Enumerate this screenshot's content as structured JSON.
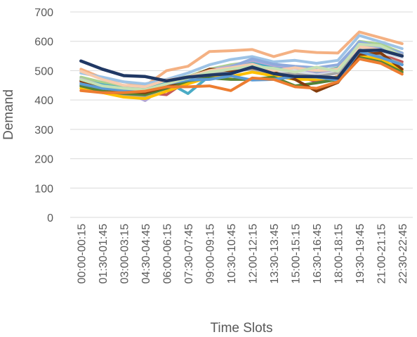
{
  "chart_data": {
    "type": "line",
    "xlabel": "Time Slots",
    "ylabel": "Demand",
    "ylim": [
      0,
      700
    ],
    "yticks": [
      0,
      100,
      200,
      300,
      400,
      500,
      600,
      700
    ],
    "grid": true,
    "legend": "none",
    "categories": [
      "00:00-00:15",
      "01:30-01:45",
      "03:00-03:15",
      "04:30-04:45",
      "06:00-06:15",
      "07:30-07:45",
      "09:00-09:15",
      "10:30-10:45",
      "12:00-12:15",
      "13:30-13:45",
      "15:00-15:15",
      "16:30-16:45",
      "18:00-18:15",
      "19:30-19:45",
      "21:00-21:15",
      "22:30-22:45"
    ],
    "series": [
      {
        "color": "#f4b183",
        "values": [
          505,
          475,
          462,
          448,
          500,
          515,
          565,
          568,
          572,
          548,
          568,
          562,
          560,
          632,
          612,
          592
        ]
      },
      {
        "color": "#a9d18e",
        "values": [
          478,
          460,
          448,
          432,
          470,
          480,
          505,
          520,
          530,
          525,
          500,
          495,
          510,
          600,
          590,
          560
        ]
      },
      {
        "color": "#9dc3e6",
        "values": [
          492,
          478,
          462,
          455,
          470,
          492,
          520,
          538,
          548,
          530,
          535,
          525,
          535,
          620,
          598,
          575
        ]
      },
      {
        "color": "#4bacc6",
        "values": [
          468,
          452,
          440,
          440,
          462,
          422,
          482,
          505,
          525,
          510,
          505,
          498,
          508,
          590,
          582,
          555
        ]
      },
      {
        "color": "#c55a5a",
        "values": [
          462,
          435,
          425,
          425,
          418,
          468,
          492,
          498,
          512,
          500,
          485,
          462,
          480,
          565,
          555,
          530
        ]
      },
      {
        "color": "#b4a7d6",
        "values": [
          472,
          448,
          432,
          398,
          450,
          478,
          502,
          515,
          535,
          518,
          510,
          488,
          502,
          588,
          575,
          548
        ]
      },
      {
        "color": "#8faadc",
        "values": [
          458,
          430,
          420,
          410,
          440,
          470,
          490,
          512,
          540,
          522,
          515,
          510,
          520,
          598,
          580,
          560
        ]
      },
      {
        "color": "#d6dce5",
        "values": [
          445,
          432,
          418,
          420,
          438,
          460,
          480,
          495,
          508,
          495,
          500,
          485,
          495,
          578,
          560,
          545
        ]
      },
      {
        "color": "#a5a5a5",
        "values": [
          452,
          428,
          415,
          412,
          445,
          462,
          485,
          498,
          505,
          490,
          488,
          480,
          492,
          572,
          550,
          522
        ]
      },
      {
        "color": "#ffc000",
        "values": [
          440,
          425,
          410,
          405,
          430,
          455,
          478,
          480,
          495,
          482,
          470,
          470,
          478,
          550,
          540,
          500
        ]
      },
      {
        "color": "#548235",
        "values": [
          448,
          430,
          422,
          418,
          440,
          465,
          475,
          470,
          470,
          478,
          448,
          458,
          470,
          545,
          530,
          495
        ]
      },
      {
        "color": "#843c0c",
        "values": [
          465,
          440,
          430,
          425,
          445,
          475,
          505,
          500,
          510,
          495,
          470,
          430,
          460,
          555,
          560,
          505
        ]
      },
      {
        "color": "#5b9bd5",
        "values": [
          455,
          440,
          432,
          430,
          455,
          468,
          470,
          482,
          468,
          470,
          480,
          478,
          468,
          565,
          545,
          520
        ]
      },
      {
        "color": "#f8cbad",
        "values": [
          498,
          470,
          450,
          445,
          468,
          478,
          500,
          510,
          522,
          500,
          510,
          500,
          505,
          582,
          570,
          552
        ]
      },
      {
        "color": "#c5e0b4",
        "values": [
          470,
          448,
          440,
          435,
          455,
          475,
          495,
          505,
          515,
          508,
          495,
          512,
          498,
          590,
          585,
          550
        ]
      },
      {
        "color": "#ed7d31",
        "values": [
          432,
          425,
          425,
          430,
          445,
          445,
          448,
          432,
          475,
          470,
          445,
          440,
          462,
          540,
          525,
          488
        ]
      },
      {
        "color": "#203864",
        "values": [
          533,
          505,
          483,
          480,
          465,
          478,
          485,
          490,
          512,
          490,
          480,
          480,
          475,
          568,
          570,
          550
        ]
      }
    ]
  }
}
